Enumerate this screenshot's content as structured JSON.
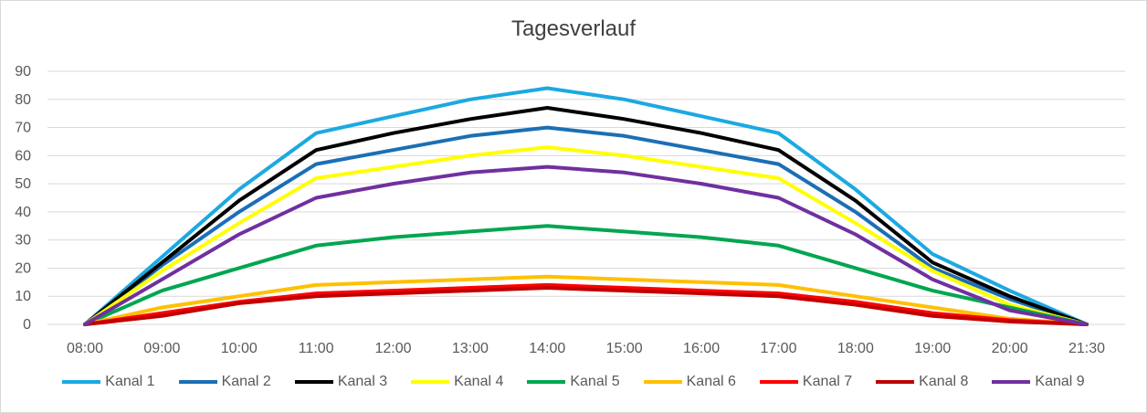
{
  "chart_data": {
    "type": "line",
    "title": "Tagesverlauf",
    "xlabel": "",
    "ylabel": "",
    "ylim": [
      0,
      90
    ],
    "yticks": [
      0,
      10,
      20,
      30,
      40,
      50,
      60,
      70,
      80,
      90
    ],
    "grid": true,
    "legend": "bottom",
    "categories": [
      "08:00",
      "09:00",
      "10:00",
      "11:00",
      "12:00",
      "13:00",
      "14:00",
      "15:00",
      "16:00",
      "17:00",
      "18:00",
      "19:00",
      "20:00",
      "21:30"
    ],
    "series": [
      {
        "name": "Kanal 1",
        "color": "#1ca9e1",
        "values": [
          0,
          24,
          48,
          68,
          74,
          80,
          84,
          80,
          74,
          68,
          48,
          25,
          12,
          0
        ]
      },
      {
        "name": "Kanal 2",
        "color": "#1b6fb5",
        "values": [
          0,
          21,
          40,
          57,
          62,
          67,
          70,
          67,
          62,
          57,
          40,
          20,
          9,
          0
        ]
      },
      {
        "name": "Kanal 3",
        "color": "#000000",
        "values": [
          0,
          22,
          44,
          62,
          68,
          73,
          77,
          73,
          68,
          62,
          44,
          22,
          10,
          0
        ]
      },
      {
        "name": "Kanal 4",
        "color": "#ffff00",
        "values": [
          0,
          19,
          36,
          52,
          56,
          60,
          63,
          60,
          56,
          52,
          36,
          19,
          7,
          0
        ]
      },
      {
        "name": "Kanal 5",
        "color": "#00a650",
        "values": [
          0,
          12,
          20,
          28,
          31,
          33,
          35,
          33,
          31,
          28,
          20,
          12,
          6,
          0
        ]
      },
      {
        "name": "Kanal 6",
        "color": "#ffc000",
        "values": [
          0,
          6,
          10,
          14,
          15,
          16,
          17,
          16,
          15,
          14,
          10,
          6,
          2,
          0
        ]
      },
      {
        "name": "Kanal 7",
        "color": "#ff0000",
        "values": [
          0,
          4,
          8,
          11,
          12,
          13,
          14,
          13,
          12,
          11,
          8,
          4,
          1.5,
          0
        ]
      },
      {
        "name": "Kanal 8",
        "color": "#c00000",
        "values": [
          0,
          3,
          7.5,
          10,
          11,
          12,
          13,
          12,
          11,
          10,
          7,
          3,
          1,
          0
        ]
      },
      {
        "name": "Kanal 9",
        "color": "#7030a0",
        "values": [
          0,
          16,
          32,
          45,
          50,
          54,
          56,
          54,
          50,
          45,
          32,
          16,
          5,
          0
        ]
      }
    ]
  }
}
